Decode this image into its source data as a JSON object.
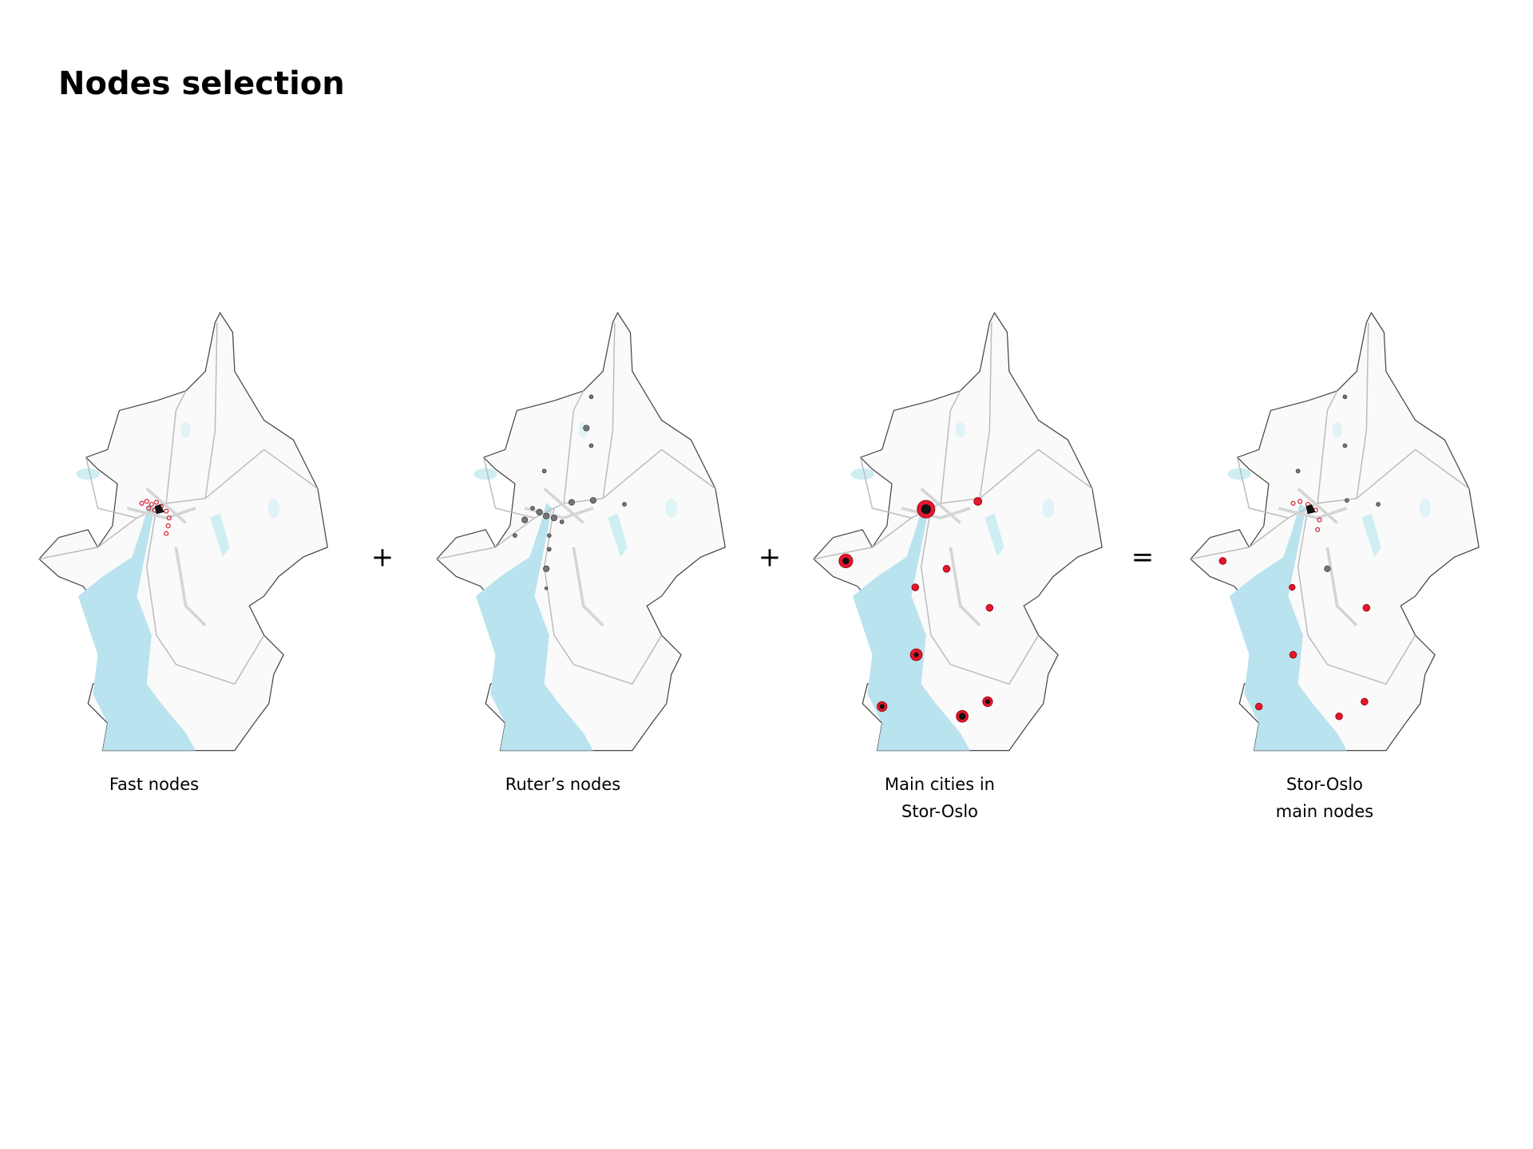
{
  "header": {
    "title": "Nodes selection"
  },
  "panels": [
    {
      "caption": [
        "Fast nodes"
      ]
    },
    {
      "caption": [
        "Ruter’s nodes"
      ]
    },
    {
      "caption": [
        "Main cities in",
        "Stor-Oslo"
      ]
    },
    {
      "caption": [
        "Stor-Oslo",
        "main nodes"
      ]
    }
  ],
  "operators": [
    "+",
    "+",
    "="
  ]
}
